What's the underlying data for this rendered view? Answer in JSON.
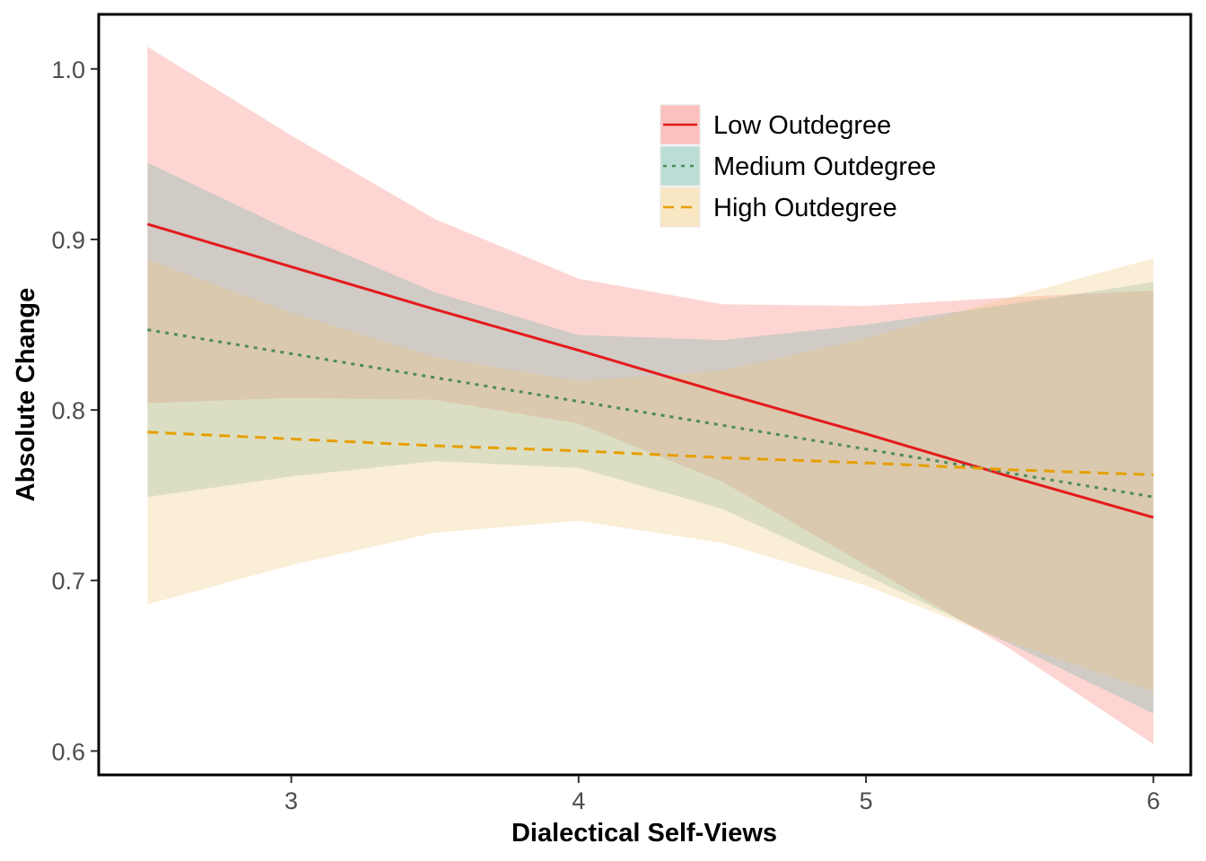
{
  "chart_data": {
    "type": "line",
    "xlabel": "Dialectical Self-Views",
    "ylabel": "Absolute Change",
    "xlim": [
      2.33,
      6.13
    ],
    "ylim": [
      0.586,
      1.032
    ],
    "x_ticks": [
      3,
      4,
      5,
      6
    ],
    "y_ticks": [
      0.6,
      0.7,
      0.8,
      0.9,
      1.0
    ],
    "x_tick_labels": [
      "3",
      "4",
      "5",
      "6"
    ],
    "y_tick_labels": [
      "0.6",
      "0.7",
      "0.8",
      "0.9",
      "1.0"
    ],
    "grid": false,
    "legend_position": "top-right",
    "x": [
      2.5,
      3.0,
      3.5,
      4.0,
      4.5,
      5.0,
      5.5,
      6.0
    ],
    "series": [
      {
        "name": "Low Outdegree",
        "color": "#E41A1C",
        "band_color": "#F8766D",
        "linestyle": "solid",
        "values": [
          0.909,
          0.884,
          0.859,
          0.835,
          0.81,
          0.786,
          0.761,
          0.737
        ],
        "lower": [
          0.804,
          0.807,
          0.806,
          0.792,
          0.758,
          0.709,
          0.66,
          0.604
        ],
        "upper": [
          1.013,
          0.961,
          0.912,
          0.877,
          0.862,
          0.861,
          0.866,
          0.87
        ]
      },
      {
        "name": "Medium Outdegree",
        "color": "#4F8A5C",
        "band_color": "#69B3A2",
        "linestyle": "dotted",
        "values": [
          0.847,
          0.833,
          0.819,
          0.805,
          0.791,
          0.777,
          0.763,
          0.749
        ],
        "lower": [
          0.749,
          0.761,
          0.77,
          0.766,
          0.742,
          0.703,
          0.663,
          0.622
        ],
        "upper": [
          0.945,
          0.905,
          0.869,
          0.844,
          0.841,
          0.85,
          0.862,
          0.875
        ]
      },
      {
        "name": "High Outdegree",
        "color": "#E69F00",
        "band_color": "#F2C77A",
        "linestyle": "dashed",
        "values": [
          0.787,
          0.783,
          0.779,
          0.776,
          0.772,
          0.769,
          0.765,
          0.762
        ],
        "lower": [
          0.686,
          0.709,
          0.728,
          0.735,
          0.722,
          0.697,
          0.664,
          0.635
        ],
        "upper": [
          0.888,
          0.857,
          0.831,
          0.817,
          0.823,
          0.842,
          0.866,
          0.889
        ]
      }
    ]
  }
}
